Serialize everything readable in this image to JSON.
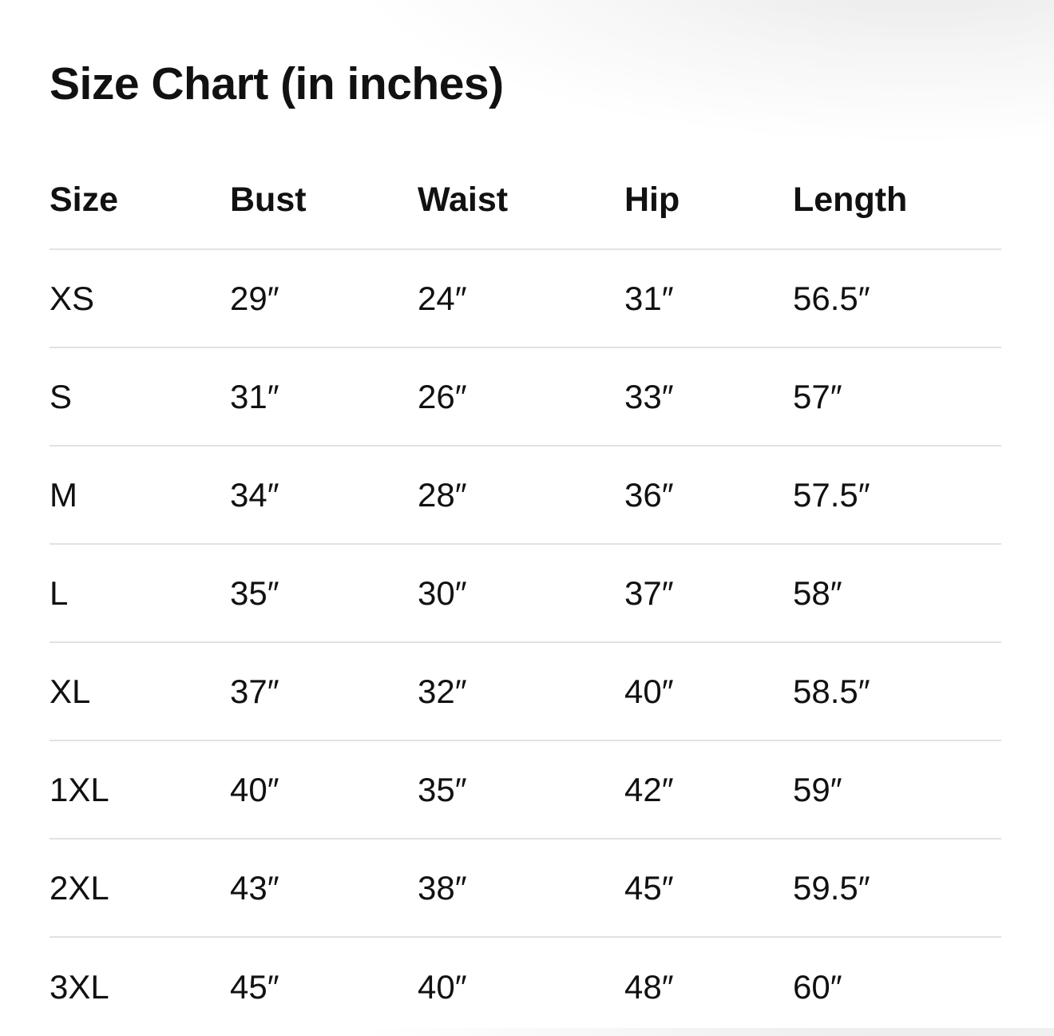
{
  "title": "Size Chart (in inches)",
  "headers": [
    "Size",
    "Bust",
    "Waist",
    "Hip",
    "Length"
  ],
  "rows": [
    [
      "XS",
      "29″",
      "24″",
      "31″",
      "56.5″"
    ],
    [
      "S",
      "31″",
      "26″",
      "33″",
      "57″"
    ],
    [
      "M",
      "34″",
      "28″",
      "36″",
      "57.5″"
    ],
    [
      "L",
      "35″",
      "30″",
      "37″",
      "58″"
    ],
    [
      "XL",
      "37″",
      "32″",
      "40″",
      "58.5″"
    ],
    [
      "1XL",
      "40″",
      "35″",
      "42″",
      "59″"
    ],
    [
      "2XL",
      "43″",
      "38″",
      "45″",
      "59.5″"
    ],
    [
      "3XL",
      "45″",
      "40″",
      "48″",
      "60″"
    ]
  ]
}
